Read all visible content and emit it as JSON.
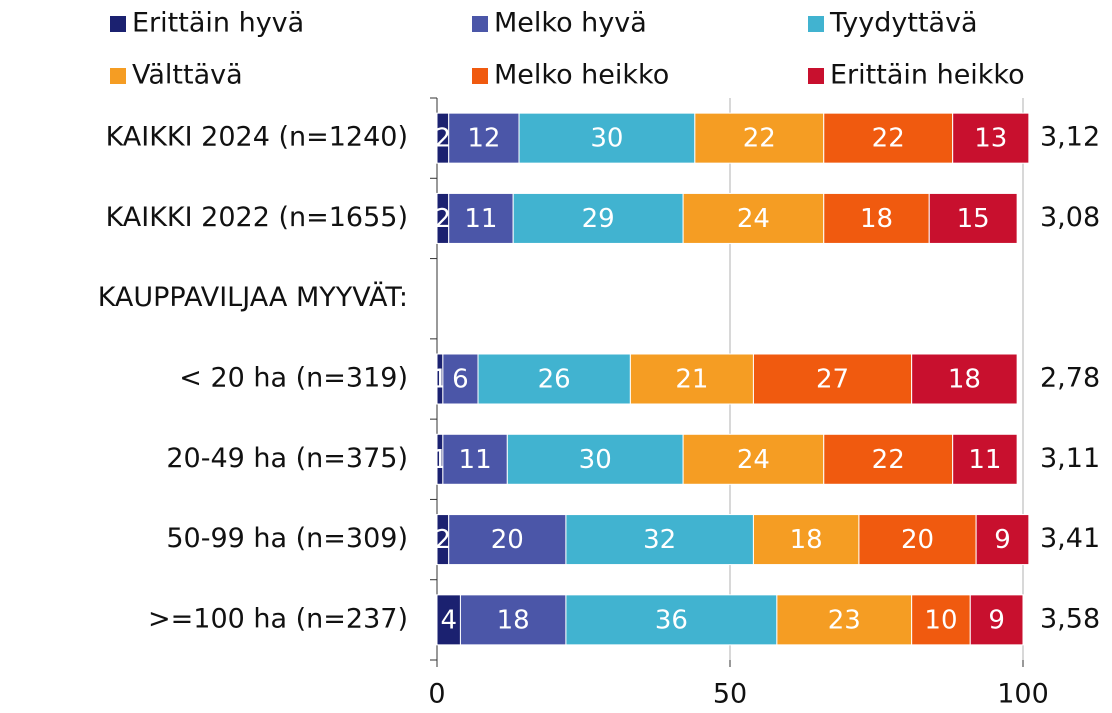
{
  "chart_data": {
    "type": "stacked-bar",
    "orientation": "horizontal",
    "categories": [
      "KAIKKI 2024 (n=1240)",
      "KAIKKI 2022 (n=1655)",
      "KAUPPAVILJAA MYYVÄT:",
      "< 20 ha (n=319)",
      "20-49 ha (n=375)",
      "50-99 ha (n=309)",
      ">=100 ha (n=237)"
    ],
    "series": [
      {
        "name": "Erittäin hyvä",
        "color": "#1b2170",
        "values": [
          2,
          2,
          null,
          1,
          1,
          2,
          4
        ]
      },
      {
        "name": "Melko hyvä",
        "color": "#4b56a8",
        "values": [
          12,
          11,
          null,
          6,
          11,
          20,
          18
        ]
      },
      {
        "name": "Tyydyttävä",
        "color": "#41b3d0",
        "values": [
          30,
          29,
          null,
          26,
          30,
          32,
          36
        ]
      },
      {
        "name": "Välttävä",
        "color": "#f59d23",
        "values": [
          22,
          24,
          null,
          21,
          24,
          18,
          23
        ]
      },
      {
        "name": "Melko heikko",
        "color": "#f05a0f",
        "values": [
          22,
          18,
          null,
          27,
          22,
          20,
          10
        ]
      },
      {
        "name": "Erittäin heikko",
        "color": "#c8102e",
        "values": [
          13,
          15,
          null,
          18,
          11,
          9,
          9
        ]
      }
    ],
    "averages": {
      "values": [
        3.12,
        3.08,
        null,
        2.78,
        3.11,
        3.41,
        3.58
      ],
      "value_labels": [
        "3,12",
        "3,08",
        null,
        "2,78",
        "3,11",
        "3,41",
        "3,58"
      ]
    },
    "xlim": [
      0,
      100
    ],
    "xticks": [
      0,
      50,
      100
    ],
    "grid": true,
    "legend": "top"
  }
}
